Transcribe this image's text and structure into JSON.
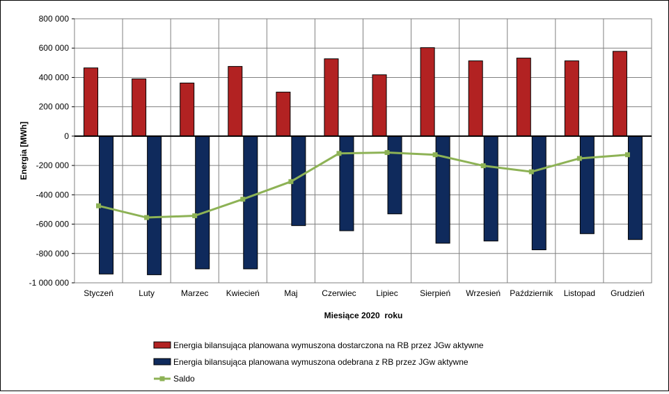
{
  "chart_data": {
    "type": "bar",
    "xlabel": "Miesiące 2020  roku",
    "ylabel": "Energia [MWh]",
    "ylim": [
      -1000000,
      800000
    ],
    "ytick_values": [
      800000,
      600000,
      400000,
      200000,
      0,
      -200000,
      -400000,
      -600000,
      -800000,
      -1000000
    ],
    "ytick_labels": [
      "800 000",
      "600 000",
      "400 000",
      "200 000",
      "0",
      "-200 000",
      "-400 000",
      "-600 000",
      "-800 000",
      "-1 000 000"
    ],
    "grid": true,
    "legend_position": "bottom",
    "categories": [
      "Styczeń",
      "Luty",
      "Marzec",
      "Kwiecień",
      "Maj",
      "Czerwiec",
      "Lipiec",
      "Sierpień",
      "Wrzesień",
      "Październik",
      "Listopad",
      "Grudzień"
    ],
    "series": [
      {
        "name": "Energia bilansująca planowana wymuszona dostarczona na RB przez JGw aktywne",
        "type": "bar",
        "color": "#B22222",
        "values": [
          465000,
          390000,
          362000,
          475000,
          300000,
          527000,
          418000,
          603000,
          513000,
          532000,
          513000,
          578000
        ]
      },
      {
        "name": "Energia bilansująca planowana wymuszona odebrana z RB przez JGw aktywne",
        "type": "bar",
        "color": "#0F2A5C",
        "values": [
          -940000,
          -945000,
          -905000,
          -905000,
          -610000,
          -645000,
          -530000,
          -730000,
          -715000,
          -775000,
          -665000,
          -705000
        ]
      },
      {
        "name": "Saldo",
        "type": "line",
        "color": "#8DB255",
        "values": [
          -475000,
          -555000,
          -543000,
          -430000,
          -310000,
          -118000,
          -112000,
          -127000,
          -202000,
          -243000,
          -152000,
          -127000
        ]
      }
    ]
  }
}
